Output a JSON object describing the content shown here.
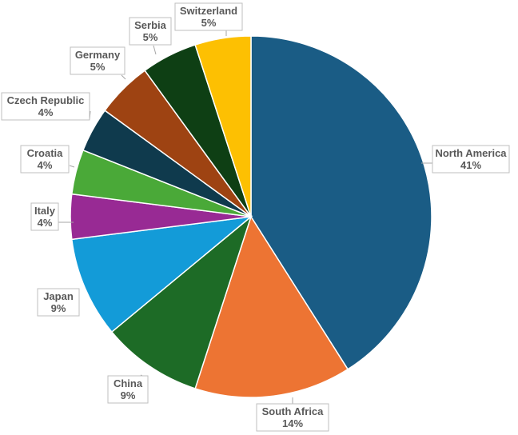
{
  "chart_data": {
    "type": "pie",
    "title": "",
    "slices": [
      {
        "name": "North America",
        "value": 41,
        "label": "41%",
        "color": "#1a5c85"
      },
      {
        "name": "South Africa",
        "value": 14,
        "label": "14%",
        "color": "#ed7433"
      },
      {
        "name": "China",
        "value": 9,
        "label": "9%",
        "color": "#1d6b26"
      },
      {
        "name": "Japan",
        "value": 9,
        "label": "9%",
        "color": "#139bd8"
      },
      {
        "name": "Italy",
        "value": 4,
        "label": "4%",
        "color": "#982a94"
      },
      {
        "name": "Croatia",
        "value": 4,
        "label": "4%",
        "color": "#4aa938"
      },
      {
        "name": "Czech Republic",
        "value": 4,
        "label": "4%",
        "color": "#0f3a4d"
      },
      {
        "name": "Germany",
        "value": 5,
        "label": "5%",
        "color": "#9e4312"
      },
      {
        "name": "Serbia",
        "value": 5,
        "label": "5%",
        "color": "#0e3f14"
      },
      {
        "name": "Switzerland",
        "value": 5,
        "label": "5%",
        "color": "#fdc002"
      }
    ],
    "start_angle_deg": 0,
    "direction": "clockwise",
    "legend": "none",
    "data_labels": "outside with leader lines"
  }
}
